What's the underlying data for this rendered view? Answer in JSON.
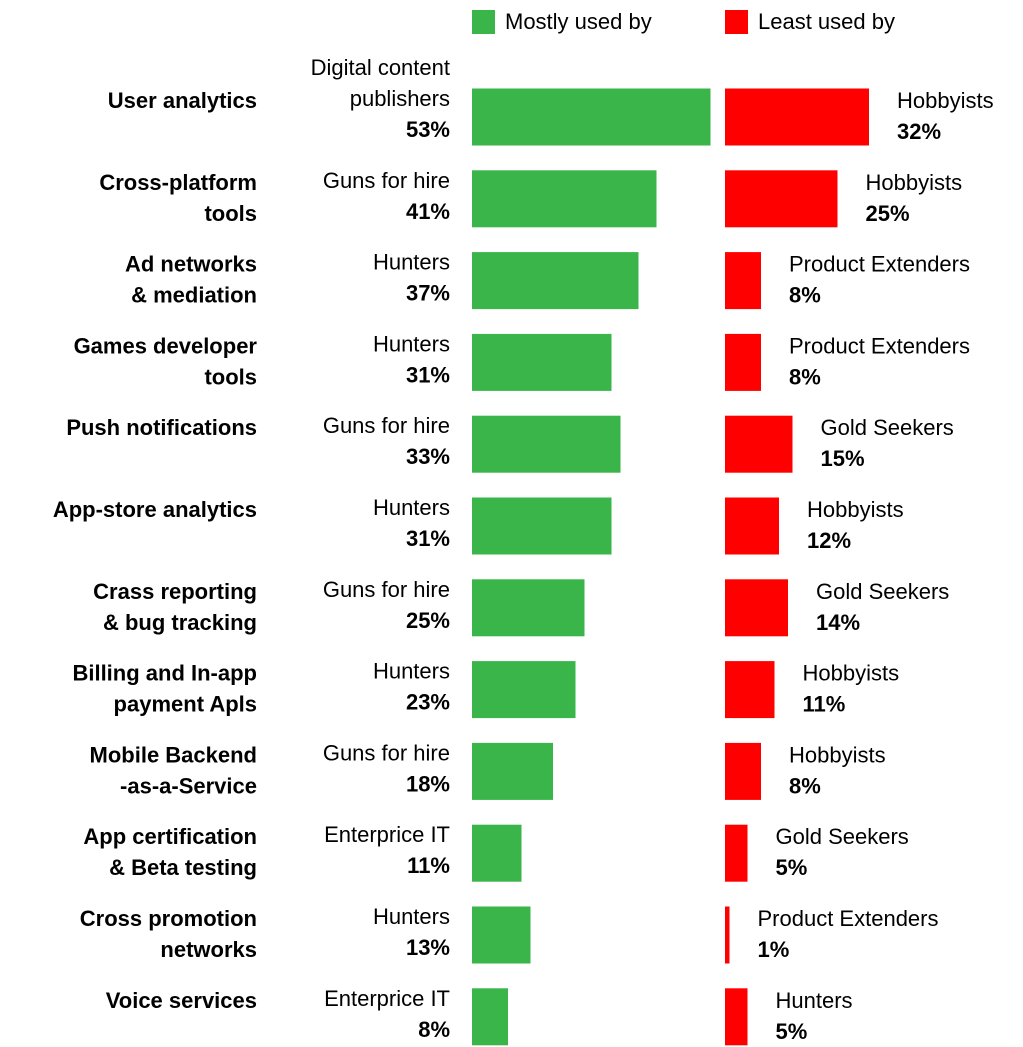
{
  "chart_data": {
    "type": "paired-bar",
    "categories": [
      "User analytics",
      "Cross-platform\ntools",
      "Ad networks\n& mediation",
      "Games developer\ntools",
      "Push notifications",
      "App-store analytics",
      "Crass reporting\n& bug tracking",
      "Billing and In-app\npayment Apls",
      "Mobile Backend\n-as-a-Service",
      "App certification\n& Beta testing",
      "Cross promotion\nnetworks",
      "Voice services"
    ],
    "series": [
      {
        "name": "Mostly used by",
        "color": "#39b54a",
        "values": [
          53,
          41,
          37,
          31,
          33,
          31,
          25,
          23,
          18,
          11,
          13,
          8
        ],
        "value_labels": [
          "53%",
          "41%",
          "37%",
          "31%",
          "33%",
          "31%",
          "25%",
          "23%",
          "18%",
          "11%",
          "13%",
          "8%"
        ],
        "groups": [
          "Digital content\npublishers",
          "Guns for hire",
          "Hunters",
          "Hunters",
          "Guns for hire",
          "Hunters",
          "Guns for hire",
          "Hunters",
          "Guns for hire",
          "Enterprice IT",
          "Hunters",
          "Enterprice IT"
        ]
      },
      {
        "name": "Least used by",
        "color": "#ff0000",
        "values": [
          32,
          25,
          8,
          8,
          15,
          12,
          14,
          11,
          8,
          5,
          1,
          5
        ],
        "value_labels": [
          "32%",
          "25%",
          "8%",
          "8%",
          "15%",
          "12%",
          "14%",
          "11%",
          "8%",
          "5%",
          "1%",
          "5%"
        ],
        "groups": [
          "Hobbyists",
          "Hobbyists",
          "Product Extenders",
          "Product Extenders",
          "Gold Seekers",
          "Hobbyists",
          "Gold Seekers",
          "Hobbyists",
          "Hobbyists",
          "Gold Seekers",
          "Product Extenders",
          "Hunters"
        ]
      }
    ]
  }
}
